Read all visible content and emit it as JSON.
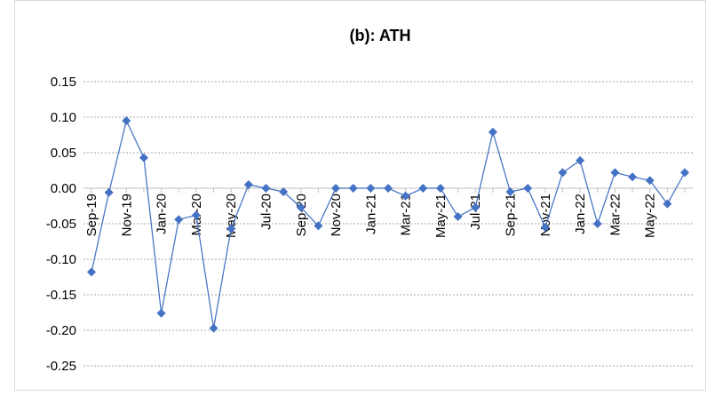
{
  "chart_data": {
    "type": "line",
    "title": "(b): ATH",
    "categories": [
      "Sep-19",
      null,
      "Nov-19",
      null,
      "Jan-20",
      null,
      "Mar-20",
      null,
      "May-20",
      null,
      "Jul-20",
      null,
      "Sep-20",
      null,
      "Nov-20",
      null,
      "Jan-21",
      null,
      "Mar-21",
      null,
      "May-21",
      null,
      "Jul-21",
      null,
      "Sep-21",
      null,
      "Nov-21",
      null,
      "Jan-22",
      null,
      "Mar-22",
      null,
      "May-22",
      null,
      null
    ],
    "values": [
      -0.118,
      -0.006,
      0.095,
      0.043,
      -0.176,
      -0.044,
      -0.038,
      -0.197,
      -0.057,
      0.005,
      0.0,
      -0.005,
      -0.027,
      -0.053,
      0.0,
      0.0,
      0.0,
      0.0,
      -0.011,
      0.0,
      0.0,
      -0.04,
      -0.027,
      0.079,
      -0.005,
      0.0,
      -0.055,
      0.022,
      0.039,
      -0.05,
      0.022,
      0.016,
      0.011,
      -0.022,
      0.022
    ],
    "color": "#4472c4",
    "ylim": [
      -0.25,
      0.15
    ],
    "yticks": [
      -0.25,
      {
        "value": -0.2,
        "label": "-0.20"
      },
      -0.15,
      {
        "value": -0.1,
        "label": "-0.10"
      },
      -0.05,
      {
        "value": 0,
        "label": "0.00"
      },
      0.05,
      {
        "value": 0.1,
        "label": "0.10"
      },
      0.15
    ],
    "grid": true
  }
}
